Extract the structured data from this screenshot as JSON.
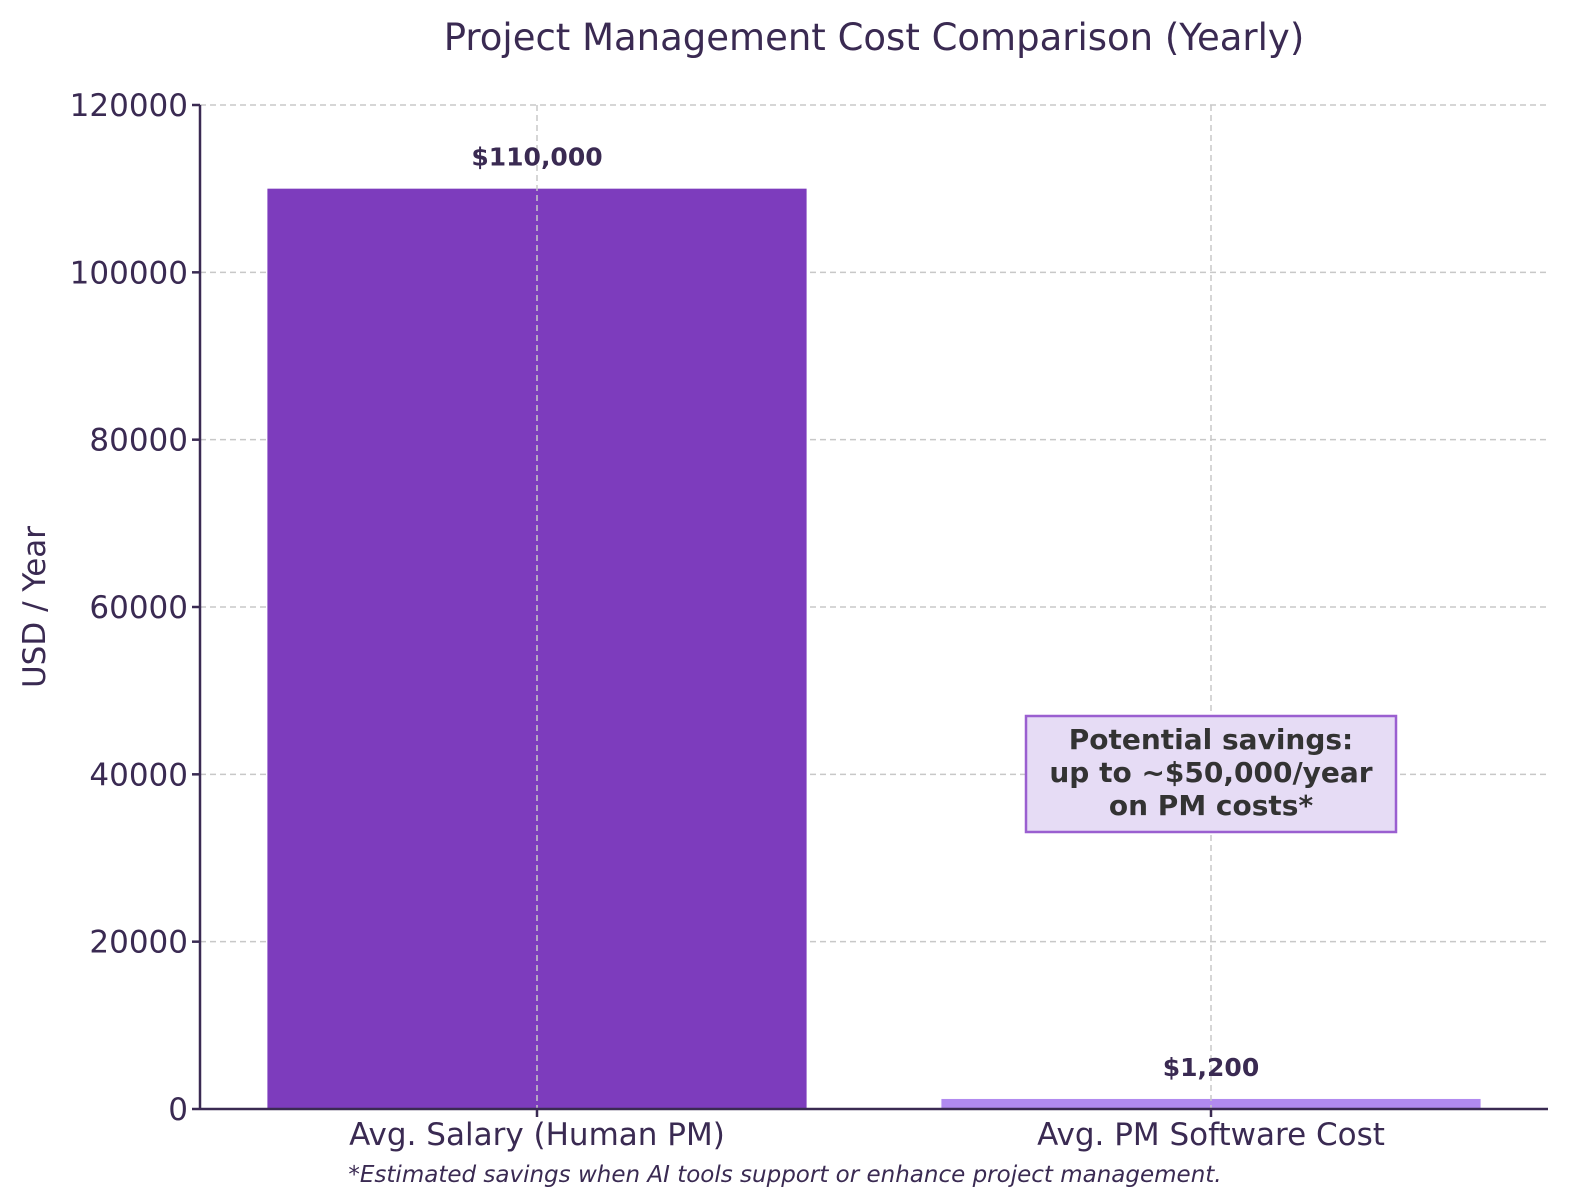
{
  "chart_data": {
    "type": "bar",
    "title": "Project Management Cost Comparison (Yearly)",
    "xlabel": "",
    "ylabel": "USD / Year",
    "ylim": [
      0,
      120000
    ],
    "yticks": [
      "0",
      "20000",
      "40000",
      "60000",
      "80000",
      "100000",
      "120000"
    ],
    "grid": true,
    "categories": [
      "Avg. Salary (Human PM)",
      "Avg. PM Software Cost"
    ],
    "values": [
      110000,
      1200
    ],
    "value_labels": [
      "$110,000",
      "$1,200"
    ],
    "colors": [
      "#7d3cbd",
      "#b18af0"
    ],
    "annotation": {
      "lines": [
        "Potential savings:",
        "up to ~$50,000/year",
        "on PM costs*"
      ],
      "fill": "#e6dcf5",
      "border": "#9a5fd0"
    },
    "footnote": "*Estimated savings when AI tools support or enhance project management."
  }
}
